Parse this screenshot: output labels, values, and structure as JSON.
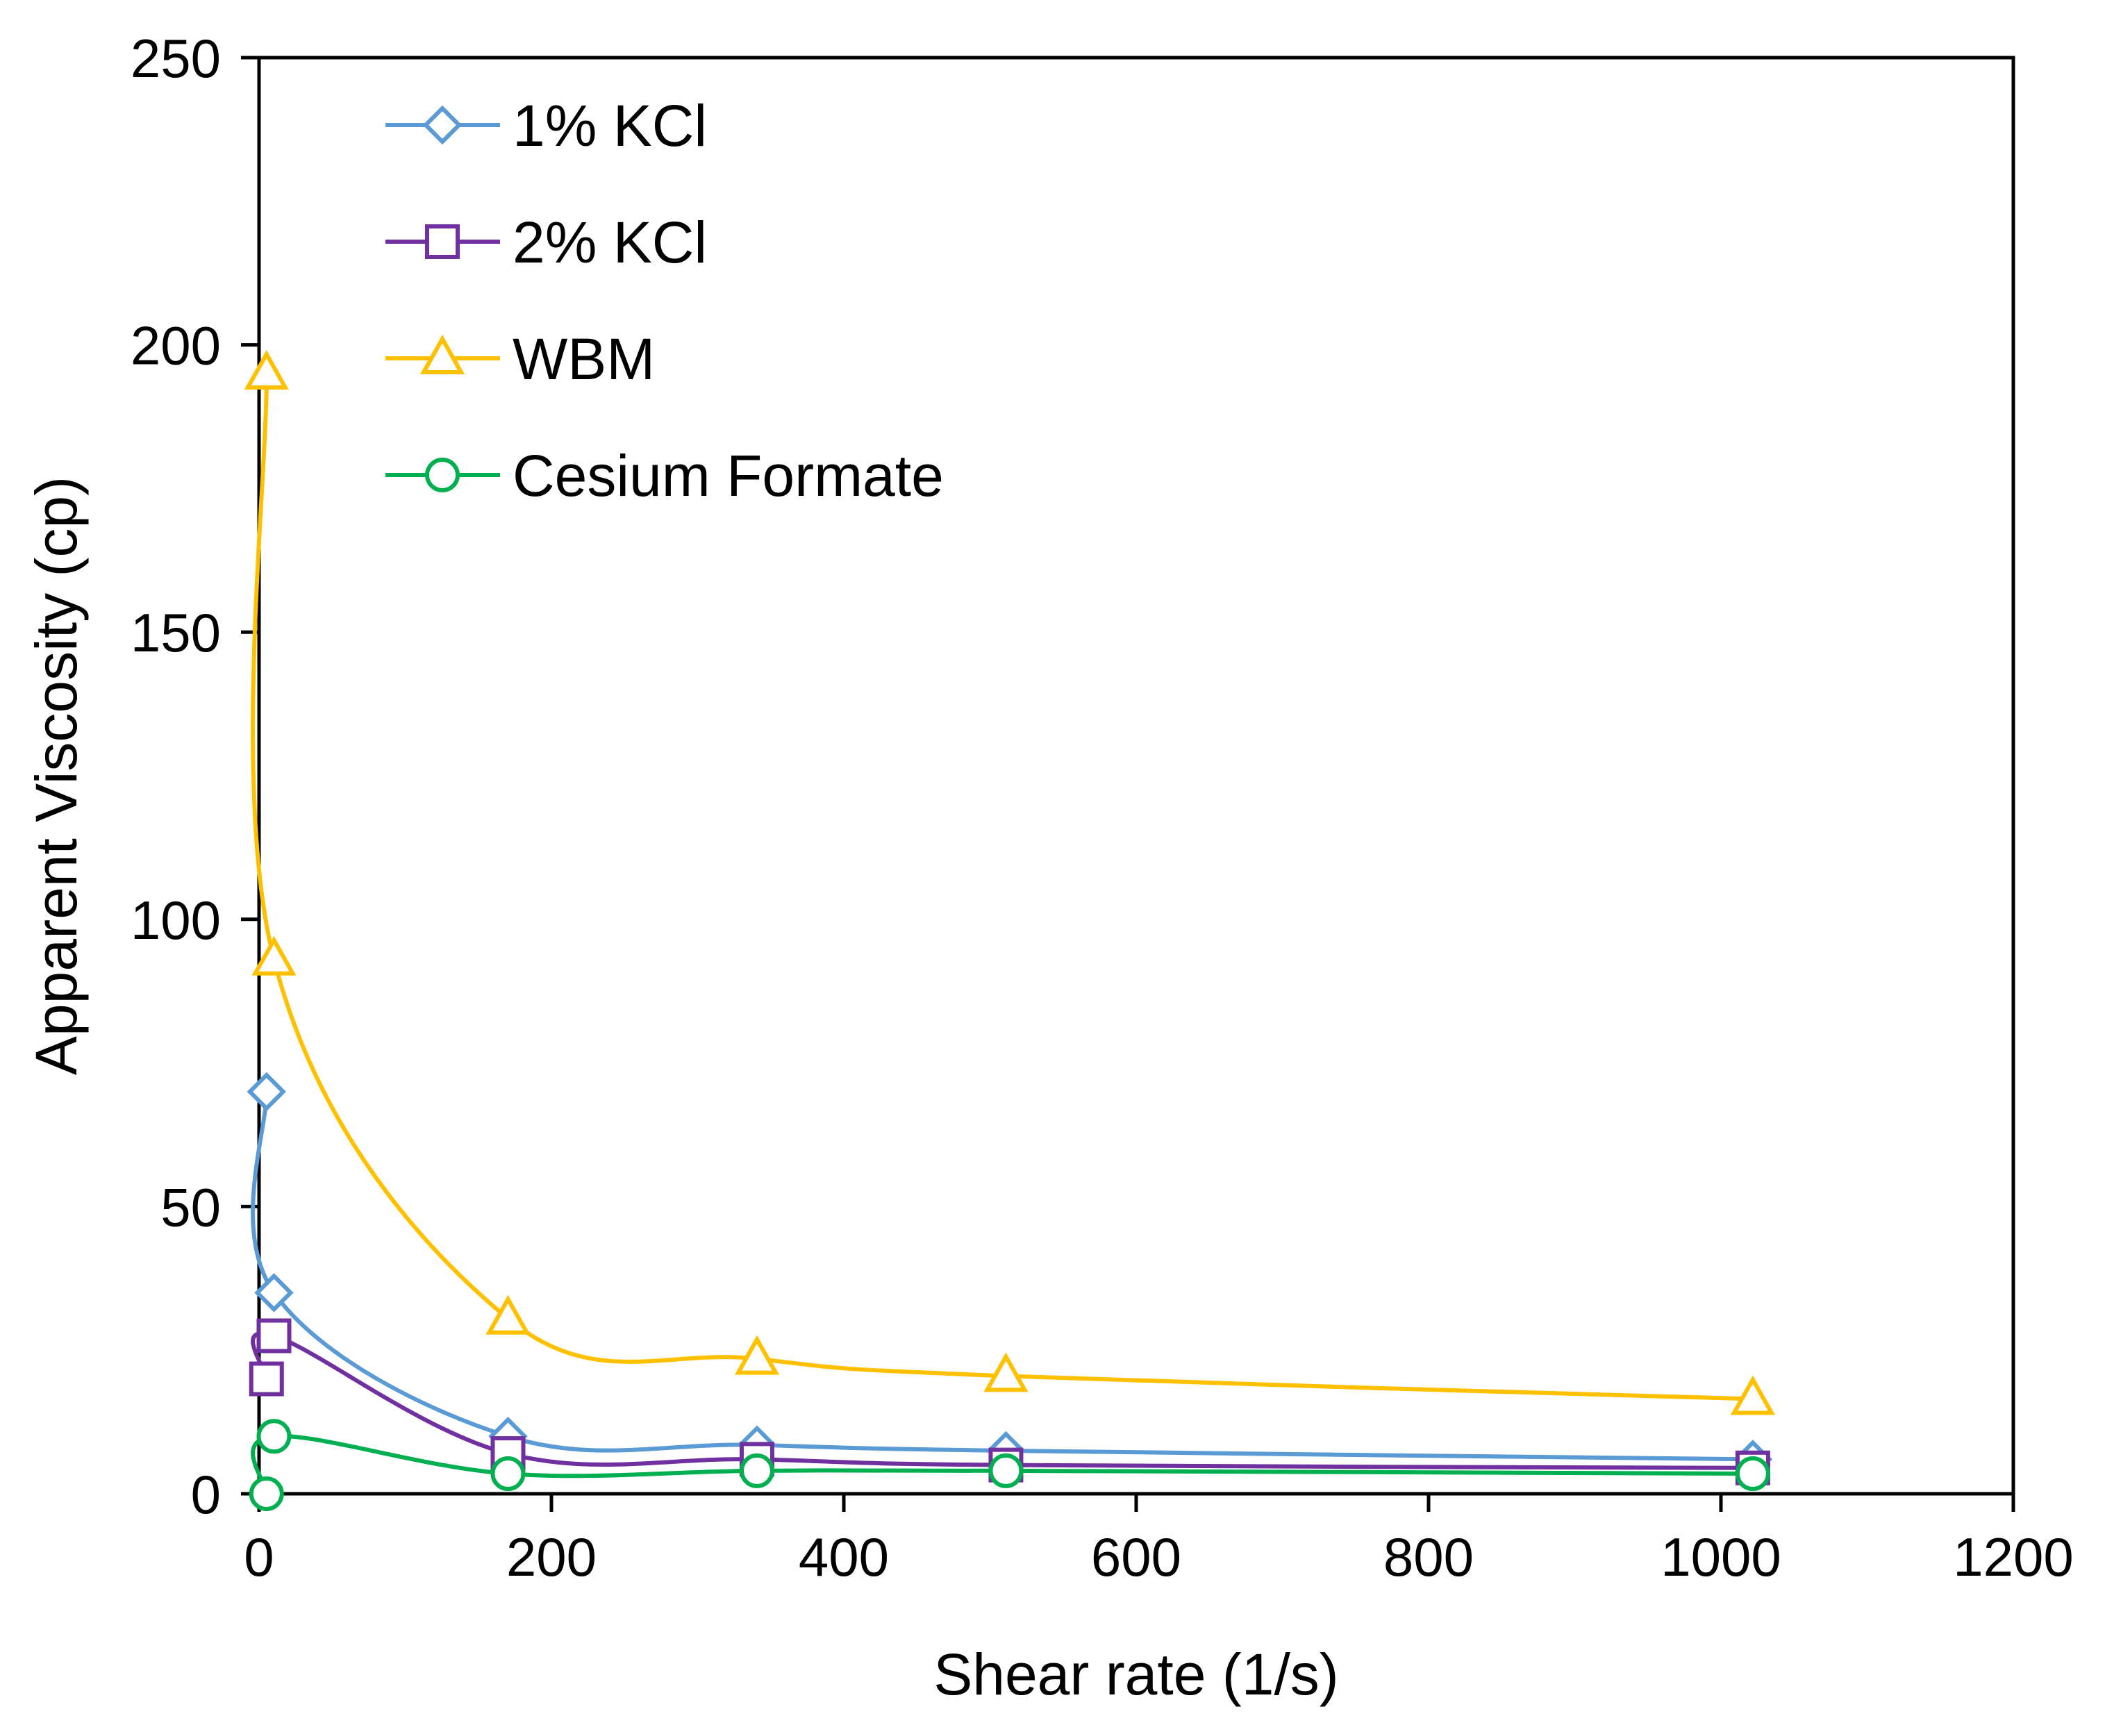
{
  "chart_data": {
    "type": "line",
    "xlabel": "Shear rate (1/s)",
    "ylabel": "Apparent Viscosity (cp)",
    "xlim": [
      0,
      1200
    ],
    "ylim": [
      0,
      250
    ],
    "x_ticks": [
      "0",
      "200",
      "400",
      "600",
      "800",
      "1000",
      "1200"
    ],
    "y_ticks": [
      "0",
      "50",
      "100",
      "150",
      "200",
      "250"
    ],
    "grid": false,
    "legend_position": "top-left",
    "series": [
      {
        "name": "1% KCl",
        "color": "#5B9BD5",
        "marker": "diamond",
        "points": [
          [
            5.11,
            70
          ],
          [
            10.22,
            35
          ],
          [
            170.3,
            10
          ],
          [
            340.6,
            8.5
          ],
          [
            510.9,
            7.5
          ],
          [
            1021.8,
            6
          ]
        ]
      },
      {
        "name": "2% KCl",
        "color": "#7030A0",
        "marker": "square",
        "points": [
          [
            5.11,
            20
          ],
          [
            10.22,
            27.5
          ],
          [
            170.3,
            7
          ],
          [
            340.6,
            6
          ],
          [
            510.9,
            5
          ],
          [
            1021.8,
            4.5
          ]
        ]
      },
      {
        "name": "WBM",
        "color": "#FFC000",
        "marker": "triangle",
        "points": [
          [
            5.11,
            195
          ],
          [
            10.22,
            93
          ],
          [
            170.3,
            30.5
          ],
          [
            340.6,
            23.5
          ],
          [
            510.9,
            20.5
          ],
          [
            1021.8,
            16.5
          ]
        ]
      },
      {
        "name": "Cesium Formate",
        "color": "#00B050",
        "marker": "circle",
        "points": [
          [
            5.11,
            0
          ],
          [
            10.22,
            10
          ],
          [
            170.3,
            3.5
          ],
          [
            340.6,
            4
          ],
          [
            510.9,
            4
          ],
          [
            1021.8,
            3.5
          ]
        ]
      }
    ]
  }
}
